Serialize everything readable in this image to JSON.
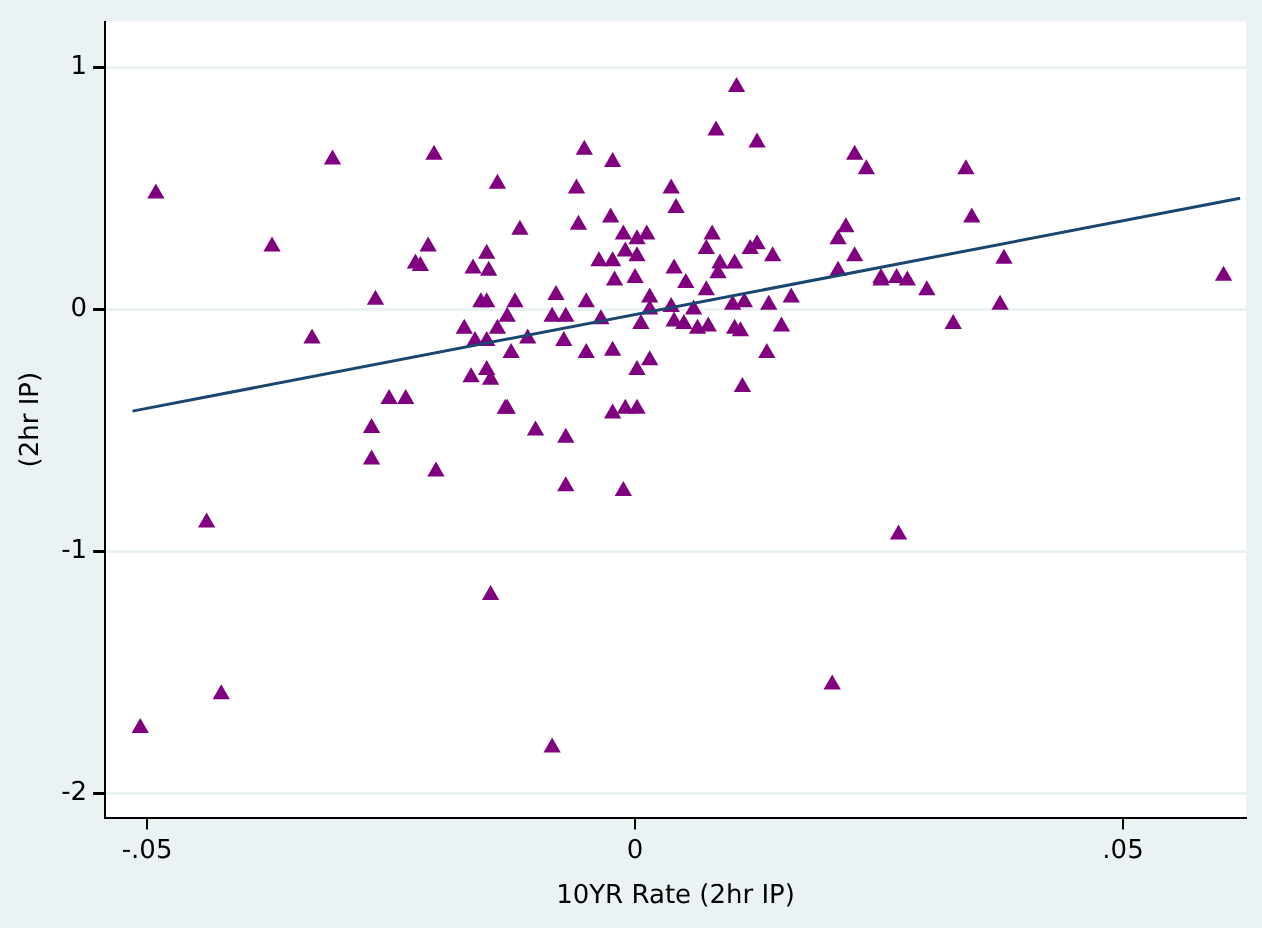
{
  "chart_data": {
    "type": "scatter",
    "xlabel": "10YR Rate (2hr IP)",
    "ylabel": "(2hr IP)",
    "xlim": [
      -0.0543,
      0.0626
    ],
    "ylim": [
      -2.1,
      1.19
    ],
    "xticks": [
      {
        "value": -0.05,
        "label": "-.05"
      },
      0,
      {
        "value": 0.05,
        "label": ".05"
      }
    ],
    "yticks": [
      -2,
      -1,
      0,
      1
    ],
    "grid": "y",
    "legend": false,
    "series": [
      {
        "type": "scatter",
        "marker": "triangle",
        "color": "#800080",
        "x": [
          -0.0507,
          -0.0424,
          -0.0439,
          -0.0148,
          -0.0085,
          0.0202,
          0.027,
          0.0603,
          -0.0491,
          -0.0372,
          -0.031,
          -0.0206,
          -0.0331,
          -0.027,
          -0.0204,
          -0.027,
          -0.0266,
          -0.0252,
          -0.0235,
          -0.0225,
          -0.0212,
          0.0104,
          0.0083,
          0.0125,
          -0.0052,
          -0.0023,
          -0.0141,
          -0.006,
          0.0037,
          0.0042,
          -0.0058,
          -0.0118,
          -0.0025,
          -0.0012,
          0.0002,
          0.0012,
          0.0079,
          0.0073,
          -0.0037,
          -0.0023,
          0.0002,
          -0.001,
          0.004,
          0.0087,
          0.0102,
          0.0118,
          0.0125,
          0.0141,
          0.0085,
          -0.0021,
          0,
          0.0052,
          0.0225,
          0.0237,
          0.0216,
          0.0208,
          0.0225,
          0.0208,
          0.0252,
          -0.0152,
          -0.015,
          -0.0152,
          -0.0123,
          -0.0081,
          -0.0085,
          -0.0071,
          -0.005,
          -0.0035,
          0.0015,
          0.0015,
          0.0006,
          0.0037,
          0.004,
          0.005,
          0.006,
          0.0064,
          0.0075,
          0.0073,
          0.01,
          0.0112,
          0.0102,
          0.0108,
          0.0137,
          0.015,
          0.016,
          -0.0131,
          -0.0127,
          -0.011,
          -0.0073,
          -0.005,
          -0.0023,
          0.0015,
          0.0002,
          0.0135,
          0.011,
          -0.0152,
          -0.0148,
          -0.0131,
          -0.0102,
          -0.0071,
          -0.0023,
          -0.001,
          0.0002,
          -0.022,
          -0.0166,
          -0.0158,
          -0.0175,
          -0.0164,
          -0.0152,
          -0.0141,
          -0.0168,
          -0.0133,
          -0.0071,
          -0.0012,
          0.0339,
          0.0345,
          0.0378,
          0.0252,
          0.0268,
          0.0279,
          0.0299,
          0.0374,
          0.0326
        ],
        "values": [
          -1.73,
          -1.59,
          -0.88,
          -1.18,
          -1.81,
          -1.55,
          -0.93,
          0.14,
          0.48,
          0.26,
          0.62,
          0.64,
          -0.12,
          -0.62,
          -0.67,
          -0.49,
          0.04,
          -0.37,
          -0.37,
          0.19,
          0.26,
          0.92,
          0.74,
          0.69,
          0.66,
          0.61,
          0.52,
          0.5,
          0.5,
          0.42,
          0.35,
          0.33,
          0.38,
          0.31,
          0.29,
          0.31,
          0.31,
          0.25,
          0.2,
          0.2,
          0.22,
          0.24,
          0.17,
          0.19,
          0.19,
          0.25,
          0.27,
          0.22,
          0.15,
          0.12,
          0.13,
          0.11,
          0.64,
          0.58,
          0.34,
          0.29,
          0.22,
          0.16,
          0.12,
          0.23,
          0.16,
          0.03,
          0.03,
          0.06,
          -0.03,
          -0.03,
          0.03,
          -0.04,
          0.05,
          0,
          -0.06,
          0.01,
          -0.05,
          -0.06,
          0,
          -0.08,
          -0.07,
          0.08,
          0.02,
          0.03,
          -0.08,
          -0.09,
          0.02,
          -0.07,
          0.05,
          -0.03,
          -0.18,
          -0.12,
          -0.13,
          -0.18,
          -0.17,
          -0.21,
          -0.25,
          -0.18,
          -0.32,
          -0.25,
          -0.29,
          -0.41,
          -0.5,
          -0.53,
          -0.43,
          -0.41,
          -0.41,
          0.18,
          0.17,
          0.03,
          -0.08,
          -0.13,
          -0.13,
          -0.08,
          -0.28,
          -0.41,
          -0.73,
          -0.75,
          0.58,
          0.38,
          0.21,
          0.13,
          0.13,
          0.12,
          0.08,
          0.02,
          -0.06
        ]
      },
      {
        "type": "line",
        "marker": "none",
        "color": "#1a476f",
        "x": [
          -0.0515,
          0.062
        ],
        "values": [
          -0.42,
          0.46
        ]
      }
    ]
  }
}
